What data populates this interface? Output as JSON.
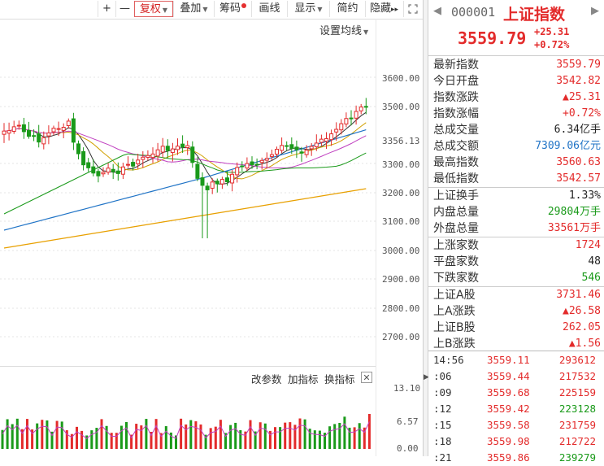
{
  "toolbar": {
    "zoom_in": "+",
    "zoom_out": "—",
    "fuquan": "复权",
    "diejia": "叠加",
    "chouma": "筹码",
    "huaxian": "画线",
    "xianshi": "显示",
    "jianyue": "简约",
    "yincang": "隐藏",
    "more": "▸▸"
  },
  "chart": {
    "settings_label": "设置均线",
    "y_axis": [
      "3600.00",
      "3500.00",
      "3356.13",
      "3300.00",
      "3200.00",
      "3100.00",
      "3000.00",
      "2900.00",
      "2800.00",
      "2700.00"
    ],
    "lower_y_axis": [
      "13.10",
      "6.57",
      "0.00"
    ],
    "sub_toolbar": {
      "change_param": "改参数",
      "add_indicator": "加指标",
      "switch_indicator": "换指标",
      "close": "✕"
    }
  },
  "quote_panel": {
    "code": "000001",
    "name": "上证指数",
    "price": "3559.79",
    "change": "+25.31",
    "change_pct": "+0.72%",
    "groups": [
      [
        {
          "label": "最新指数",
          "value": "3559.79",
          "unit": "",
          "color": "red"
        },
        {
          "label": "今日开盘",
          "value": "3542.82",
          "unit": "",
          "color": "red"
        },
        {
          "label": "指数涨跌",
          "value": "▲25.31",
          "unit": "",
          "color": "red"
        },
        {
          "label": "指数涨幅",
          "value": "+0.72%",
          "unit": "",
          "color": "red"
        },
        {
          "label": "总成交量",
          "value": "6.34",
          "unit": "亿手",
          "color": "black"
        },
        {
          "label": "总成交额",
          "value": "7309.06",
          "unit": "亿元",
          "color": "blue"
        },
        {
          "label": "最高指数",
          "value": "3560.63",
          "unit": "",
          "color": "red"
        },
        {
          "label": "最低指数",
          "value": "3542.57",
          "unit": "",
          "color": "red"
        }
      ],
      [
        {
          "label": "上证换手",
          "value": "1.33%",
          "unit": "",
          "color": "black"
        },
        {
          "label": "内盘总量",
          "value": "29804",
          "unit": "万手",
          "color": "green"
        },
        {
          "label": "外盘总量",
          "value": "33561",
          "unit": "万手",
          "color": "red"
        }
      ],
      [
        {
          "label": "上涨家数",
          "value": "1724",
          "unit": "",
          "color": "red"
        },
        {
          "label": "平盘家数",
          "value": "48",
          "unit": "",
          "color": "black"
        },
        {
          "label": "下跌家数",
          "value": "546",
          "unit": "",
          "color": "green"
        }
      ],
      [
        {
          "label": "上证A股",
          "value": "3731.46",
          "unit": "",
          "color": "red"
        },
        {
          "label": "上A涨跌",
          "value": "▲26.58",
          "unit": "",
          "color": "red"
        },
        {
          "label": "上证B股",
          "value": "262.05",
          "unit": "",
          "color": "red"
        },
        {
          "label": "上B涨跌",
          "value": "▲1.56",
          "unit": "",
          "color": "red"
        }
      ]
    ],
    "ticks": [
      {
        "time": "14:56",
        "price": "3559.11",
        "vol": "293612",
        "color": "red"
      },
      {
        "time": ":06",
        "price": "3559.44",
        "vol": "217532",
        "color": "red"
      },
      {
        "time": ":09",
        "price": "3559.68",
        "vol": "225159",
        "color": "red"
      },
      {
        "time": ":12",
        "price": "3559.42",
        "vol": "223128",
        "color": "green"
      },
      {
        "time": ":15",
        "price": "3559.58",
        "vol": "231759",
        "color": "red"
      },
      {
        "time": ":18",
        "price": "3559.98",
        "vol": "212722",
        "color": "red"
      },
      {
        "time": ":21",
        "price": "3559.86",
        "vol": "239279",
        "color": "green"
      }
    ]
  }
}
